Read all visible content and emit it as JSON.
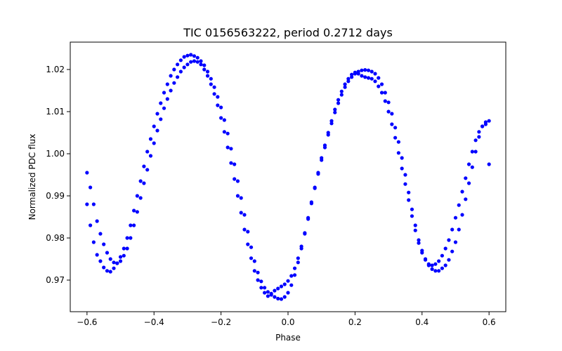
{
  "chart_data": {
    "type": "scatter",
    "title": "TIC 0156563222, period 0.2712 days",
    "xlabel": "Phase",
    "ylabel": "Normalized PDC flux",
    "xlim": [
      -0.65,
      0.65
    ],
    "ylim": [
      0.9625,
      1.0265
    ],
    "xticks": [
      -0.6,
      -0.4,
      -0.2,
      0.0,
      0.2,
      0.4,
      0.6
    ],
    "xtick_labels": [
      "−0.6",
      "−0.4",
      "−0.2",
      "0.0",
      "0.2",
      "0.4",
      "0.6"
    ],
    "yticks": [
      0.97,
      0.98,
      0.99,
      1.0,
      1.01,
      1.02
    ],
    "ytick_labels": [
      "0.97",
      "0.98",
      "0.99",
      "1.00",
      "1.01",
      "1.02"
    ],
    "grid": false,
    "series": [
      {
        "color": "#0000ff",
        "marker": "circle",
        "points": [
          [
            -0.6,
            0.988
          ],
          [
            -0.59,
            0.983
          ],
          [
            -0.58,
            0.979
          ],
          [
            -0.57,
            0.976
          ],
          [
            -0.56,
            0.9745
          ],
          [
            -0.55,
            0.973
          ],
          [
            -0.54,
            0.9722
          ],
          [
            -0.53,
            0.972
          ],
          [
            -0.52,
            0.9728
          ],
          [
            -0.51,
            0.974
          ],
          [
            -0.5,
            0.9755
          ],
          [
            -0.49,
            0.9775
          ],
          [
            -0.48,
            0.98
          ],
          [
            -0.47,
            0.983
          ],
          [
            -0.46,
            0.9865
          ],
          [
            -0.45,
            0.99
          ],
          [
            -0.44,
            0.9935
          ],
          [
            -0.43,
            0.997
          ],
          [
            -0.42,
            1.0005
          ],
          [
            -0.41,
            1.0035
          ],
          [
            -0.4,
            1.0065
          ],
          [
            -0.39,
            1.0095
          ],
          [
            -0.38,
            1.012
          ],
          [
            -0.37,
            1.0145
          ],
          [
            -0.36,
            1.0165
          ],
          [
            -0.35,
            1.0185
          ],
          [
            -0.34,
            1.02
          ],
          [
            -0.33,
            1.0212
          ],
          [
            -0.32,
            1.0222
          ],
          [
            -0.31,
            1.023
          ],
          [
            -0.3,
            1.0233
          ],
          [
            -0.29,
            1.0235
          ],
          [
            -0.28,
            1.0232
          ],
          [
            -0.27,
            1.0228
          ],
          [
            -0.26,
            1.022
          ],
          [
            -0.25,
            1.021
          ],
          [
            -0.24,
            1.0195
          ],
          [
            -0.23,
            1.0178
          ],
          [
            -0.22,
            1.0158
          ],
          [
            -0.21,
            1.0135
          ],
          [
            -0.2,
            1.011
          ],
          [
            -0.19,
            1.008
          ],
          [
            -0.18,
            1.0048
          ],
          [
            -0.17,
            1.0012
          ],
          [
            -0.16,
            0.9975
          ],
          [
            -0.15,
            0.9935
          ],
          [
            -0.14,
            0.9895
          ],
          [
            -0.13,
            0.9855
          ],
          [
            -0.12,
            0.9815
          ],
          [
            -0.11,
            0.9778
          ],
          [
            -0.1,
            0.9745
          ],
          [
            -0.09,
            0.9718
          ],
          [
            -0.08,
            0.9697
          ],
          [
            -0.07,
            0.9682
          ],
          [
            -0.06,
            0.9672
          ],
          [
            -0.05,
            0.9665
          ],
          [
            -0.04,
            0.966
          ],
          [
            -0.03,
            0.9656
          ],
          [
            -0.02,
            0.9655
          ],
          [
            -0.01,
            0.966
          ],
          [
            0.0,
            0.967
          ],
          [
            0.01,
            0.9688
          ],
          [
            0.02,
            0.9712
          ],
          [
            0.03,
            0.9742
          ],
          [
            0.04,
            0.9775
          ],
          [
            0.05,
            0.981
          ],
          [
            0.06,
            0.9845
          ],
          [
            0.07,
            0.9882
          ],
          [
            0.08,
            0.9918
          ],
          [
            0.09,
            0.9952
          ],
          [
            0.1,
            0.9985
          ],
          [
            0.11,
            1.0015
          ],
          [
            0.12,
            1.0045
          ],
          [
            0.13,
            1.0072
          ],
          [
            0.14,
            1.0098
          ],
          [
            0.15,
            1.012
          ],
          [
            0.16,
            1.014
          ],
          [
            0.17,
            1.0158
          ],
          [
            0.18,
            1.0172
          ],
          [
            0.19,
            1.0182
          ],
          [
            0.2,
            1.019
          ],
          [
            0.21,
            1.0195
          ],
          [
            0.22,
            1.0198
          ],
          [
            0.23,
            1.0199
          ],
          [
            0.24,
            1.0198
          ],
          [
            0.25,
            1.0195
          ],
          [
            0.26,
            1.019
          ],
          [
            0.27,
            1.018
          ],
          [
            0.28,
            1.0165
          ],
          [
            0.29,
            1.0145
          ],
          [
            0.3,
            1.0122
          ],
          [
            0.31,
            1.0095
          ],
          [
            0.32,
            1.0062
          ],
          [
            0.33,
            1.0028
          ],
          [
            0.34,
            0.999
          ],
          [
            0.35,
            0.995
          ],
          [
            0.36,
            0.9908
          ],
          [
            0.37,
            0.9868
          ],
          [
            0.38,
            0.983
          ],
          [
            0.39,
            0.9795
          ],
          [
            0.4,
            0.977
          ],
          [
            0.41,
            0.975
          ],
          [
            0.42,
            0.9735
          ],
          [
            0.43,
            0.9726
          ],
          [
            0.44,
            0.9722
          ],
          [
            0.45,
            0.9722
          ],
          [
            0.46,
            0.9728
          ],
          [
            0.47,
            0.9735
          ],
          [
            0.48,
            0.9748
          ],
          [
            0.49,
            0.9768
          ],
          [
            0.5,
            0.979
          ],
          [
            0.51,
            0.982
          ],
          [
            0.52,
            0.9855
          ],
          [
            0.53,
            0.9892
          ],
          [
            0.54,
            0.993
          ],
          [
            0.55,
            0.9968
          ],
          [
            0.56,
            1.0005
          ],
          [
            0.57,
            1.004
          ],
          [
            0.58,
            1.0065
          ],
          [
            0.59,
            1.0075
          ],
          [
            0.6,
            1.0078
          ],
          [
            -0.6,
            0.9955
          ],
          [
            -0.59,
            0.992
          ],
          [
            -0.58,
            0.988
          ],
          [
            -0.57,
            0.984
          ],
          [
            -0.56,
            0.981
          ],
          [
            -0.55,
            0.9785
          ],
          [
            -0.54,
            0.9765
          ],
          [
            -0.53,
            0.975
          ],
          [
            -0.52,
            0.9742
          ],
          [
            -0.51,
            0.974
          ],
          [
            -0.5,
            0.9745
          ],
          [
            -0.49,
            0.9758
          ],
          [
            -0.48,
            0.9775
          ],
          [
            -0.47,
            0.98
          ],
          [
            -0.46,
            0.983
          ],
          [
            -0.45,
            0.9862
          ],
          [
            -0.44,
            0.9895
          ],
          [
            -0.43,
            0.993
          ],
          [
            -0.42,
            0.9962
          ],
          [
            -0.41,
            0.9995
          ],
          [
            -0.4,
            1.0025
          ],
          [
            -0.39,
            1.0055
          ],
          [
            -0.38,
            1.0082
          ],
          [
            -0.37,
            1.0108
          ],
          [
            -0.36,
            1.013
          ],
          [
            -0.35,
            1.015
          ],
          [
            -0.34,
            1.0168
          ],
          [
            -0.33,
            1.0182
          ],
          [
            -0.32,
            1.0195
          ],
          [
            -0.31,
            1.0205
          ],
          [
            -0.3,
            1.0212
          ],
          [
            -0.29,
            1.0218
          ],
          [
            -0.28,
            1.022
          ],
          [
            -0.27,
            1.0218
          ],
          [
            -0.26,
            1.0212
          ],
          [
            -0.25,
            1.02
          ],
          [
            -0.24,
            1.0185
          ],
          [
            -0.23,
            1.0165
          ],
          [
            -0.22,
            1.0142
          ],
          [
            -0.21,
            1.0115
          ],
          [
            -0.2,
            1.0085
          ],
          [
            -0.19,
            1.0052
          ],
          [
            -0.18,
            1.0015
          ],
          [
            -0.17,
            0.9978
          ],
          [
            -0.16,
            0.994
          ],
          [
            -0.15,
            0.99
          ],
          [
            -0.14,
            0.986
          ],
          [
            -0.13,
            0.982
          ],
          [
            -0.12,
            0.9785
          ],
          [
            -0.11,
            0.9752
          ],
          [
            -0.1,
            0.9722
          ],
          [
            -0.09,
            0.97
          ],
          [
            -0.08,
            0.9682
          ],
          [
            -0.07,
            0.967
          ],
          [
            -0.06,
            0.9662
          ],
          [
            -0.05,
            0.9668
          ],
          [
            -0.04,
            0.9675
          ],
          [
            -0.03,
            0.968
          ],
          [
            -0.02,
            0.9685
          ],
          [
            -0.01,
            0.969
          ],
          [
            0.0,
            0.9698
          ],
          [
            0.01,
            0.971
          ],
          [
            0.02,
            0.9728
          ],
          [
            0.03,
            0.9752
          ],
          [
            0.04,
            0.978
          ],
          [
            0.05,
            0.9812
          ],
          [
            0.06,
            0.9848
          ],
          [
            0.07,
            0.9885
          ],
          [
            0.08,
            0.992
          ],
          [
            0.09,
            0.9955
          ],
          [
            0.1,
            0.999
          ],
          [
            0.11,
            1.002
          ],
          [
            0.12,
            1.005
          ],
          [
            0.13,
            1.0078
          ],
          [
            0.14,
            1.0105
          ],
          [
            0.15,
            1.0128
          ],
          [
            0.16,
            1.0148
          ],
          [
            0.17,
            1.0165
          ],
          [
            0.18,
            1.0178
          ],
          [
            0.19,
            1.0188
          ],
          [
            0.2,
            1.0193
          ],
          [
            0.21,
            1.019
          ],
          [
            0.22,
            1.0185
          ],
          [
            0.23,
            1.0182
          ],
          [
            0.24,
            1.018
          ],
          [
            0.25,
            1.0178
          ],
          [
            0.26,
            1.0172
          ],
          [
            0.27,
            1.016
          ],
          [
            0.28,
            1.0145
          ],
          [
            0.29,
            1.0125
          ],
          [
            0.3,
            1.01
          ],
          [
            0.31,
            1.007
          ],
          [
            0.32,
            1.0038
          ],
          [
            0.33,
            1.0002
          ],
          [
            0.34,
            0.9965
          ],
          [
            0.35,
            0.9928
          ],
          [
            0.36,
            0.989
          ],
          [
            0.37,
            0.9852
          ],
          [
            0.38,
            0.9818
          ],
          [
            0.39,
            0.9788
          ],
          [
            0.4,
            0.9765
          ],
          [
            0.41,
            0.9748
          ],
          [
            0.42,
            0.9738
          ],
          [
            0.43,
            0.9735
          ],
          [
            0.44,
            0.9738
          ],
          [
            0.45,
            0.9745
          ],
          [
            0.46,
            0.9758
          ],
          [
            0.47,
            0.9775
          ],
          [
            0.48,
            0.9795
          ],
          [
            0.49,
            0.982
          ],
          [
            0.5,
            0.9848
          ],
          [
            0.51,
            0.9878
          ],
          [
            0.52,
            0.991
          ],
          [
            0.53,
            0.9942
          ],
          [
            0.54,
            0.9975
          ],
          [
            0.55,
            1.0005
          ],
          [
            0.56,
            1.0032
          ],
          [
            0.57,
            1.0052
          ],
          [
            0.58,
            1.0065
          ],
          [
            0.59,
            1.007
          ],
          [
            0.6,
            0.9975
          ]
        ]
      }
    ]
  }
}
